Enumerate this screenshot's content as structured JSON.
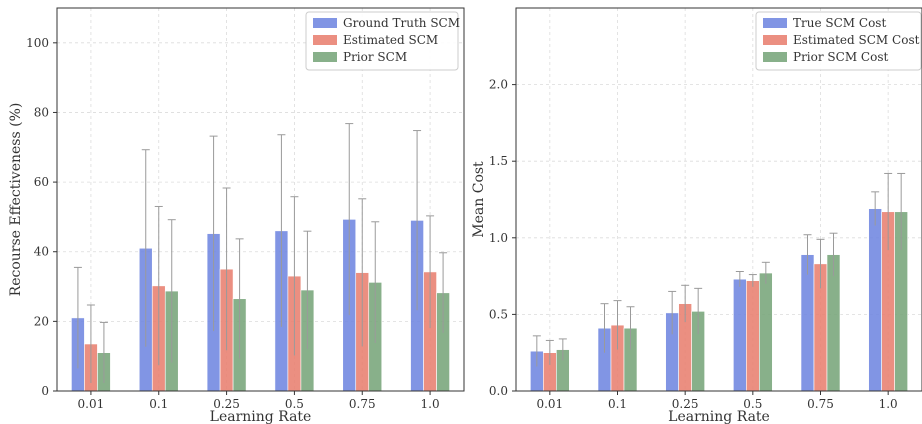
{
  "chart_data": [
    {
      "type": "bar",
      "title": "",
      "xlabel": "Learning Rate",
      "ylabel": "Recourse Effectiveness (%)",
      "categories": [
        "0.01",
        "0.1",
        "0.25",
        "0.5",
        "0.75",
        "1.0"
      ],
      "ylim": [
        0,
        110
      ],
      "yticks": [
        0,
        20,
        40,
        60,
        80,
        100
      ],
      "grid": true,
      "legend_position": "top-right",
      "series": [
        {
          "name": "Ground Truth SCM",
          "color": "#6f86e0",
          "values": [
            21,
            41,
            45.2,
            46,
            49.3,
            49
          ],
          "errors": [
            14.5,
            28.3,
            28,
            27.6,
            27.5,
            25.8
          ]
        },
        {
          "name": "Estimated SCM",
          "color": "#e8806f",
          "values": [
            13.5,
            30.2,
            35,
            33,
            34,
            34.2
          ],
          "errors": [
            11.2,
            22.8,
            23.3,
            22.8,
            21.2,
            16.1
          ]
        },
        {
          "name": "Prior SCM",
          "color": "#77a57a",
          "values": [
            11,
            28.7,
            26.5,
            29,
            31.2,
            28.2
          ],
          "errors": [
            8.7,
            20.5,
            17.2,
            16.9,
            17.4,
            11.5
          ]
        }
      ]
    },
    {
      "type": "bar",
      "title": "",
      "xlabel": "Learning Rate",
      "ylabel": "Mean Cost",
      "categories": [
        "0.01",
        "0.1",
        "0.25",
        "0.5",
        "0.75",
        "1.0"
      ],
      "ylim": [
        0,
        2.5
      ],
      "yticks": [
        "0.0",
        "0.5",
        "1.0",
        "1.5",
        "2.0"
      ],
      "grid": true,
      "legend_position": "top-right",
      "series": [
        {
          "name": "True SCM Cost",
          "color": "#6f86e0",
          "values": [
            0.26,
            0.41,
            0.51,
            0.73,
            0.89,
            1.19
          ],
          "errors": [
            0.1,
            0.16,
            0.14,
            0.05,
            0.13,
            0.11
          ]
        },
        {
          "name": "Estimated SCM Cost",
          "color": "#e8806f",
          "values": [
            0.25,
            0.43,
            0.57,
            0.72,
            0.83,
            1.17
          ],
          "errors": [
            0.08,
            0.16,
            0.12,
            0.04,
            0.16,
            0.25
          ]
        },
        {
          "name": "Prior SCM Cost",
          "color": "#77a57a",
          "values": [
            0.27,
            0.41,
            0.52,
            0.77,
            0.89,
            1.17
          ],
          "errors": [
            0.07,
            0.14,
            0.15,
            0.07,
            0.14,
            0.25
          ]
        }
      ]
    }
  ]
}
